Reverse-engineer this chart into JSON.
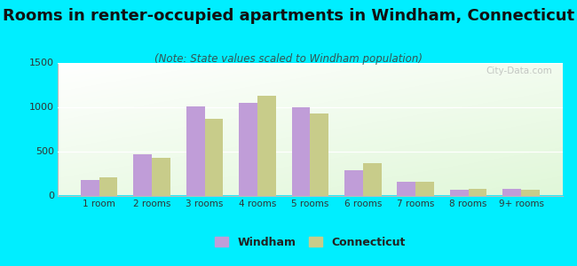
{
  "title": "Rooms in renter-occupied apartments in Windham, Connecticut",
  "subtitle": "(Note: State values scaled to Windham population)",
  "categories": [
    "1 room",
    "2 rooms",
    "3 rooms",
    "4 rooms",
    "5 rooms",
    "6 rooms",
    "7 rooms",
    "8 rooms",
    "9+ rooms"
  ],
  "windham": [
    175,
    470,
    1010,
    1050,
    1000,
    290,
    160,
    65,
    80
  ],
  "connecticut": [
    205,
    430,
    865,
    1130,
    930,
    370,
    155,
    80,
    65
  ],
  "windham_color": "#c09dd8",
  "connecticut_color": "#c8cc8a",
  "background_outer": "#00eeff",
  "ylim": [
    0,
    1500
  ],
  "yticks": [
    0,
    500,
    1000,
    1500
  ],
  "bar_width": 0.35,
  "title_fontsize": 13,
  "subtitle_fontsize": 8.5
}
